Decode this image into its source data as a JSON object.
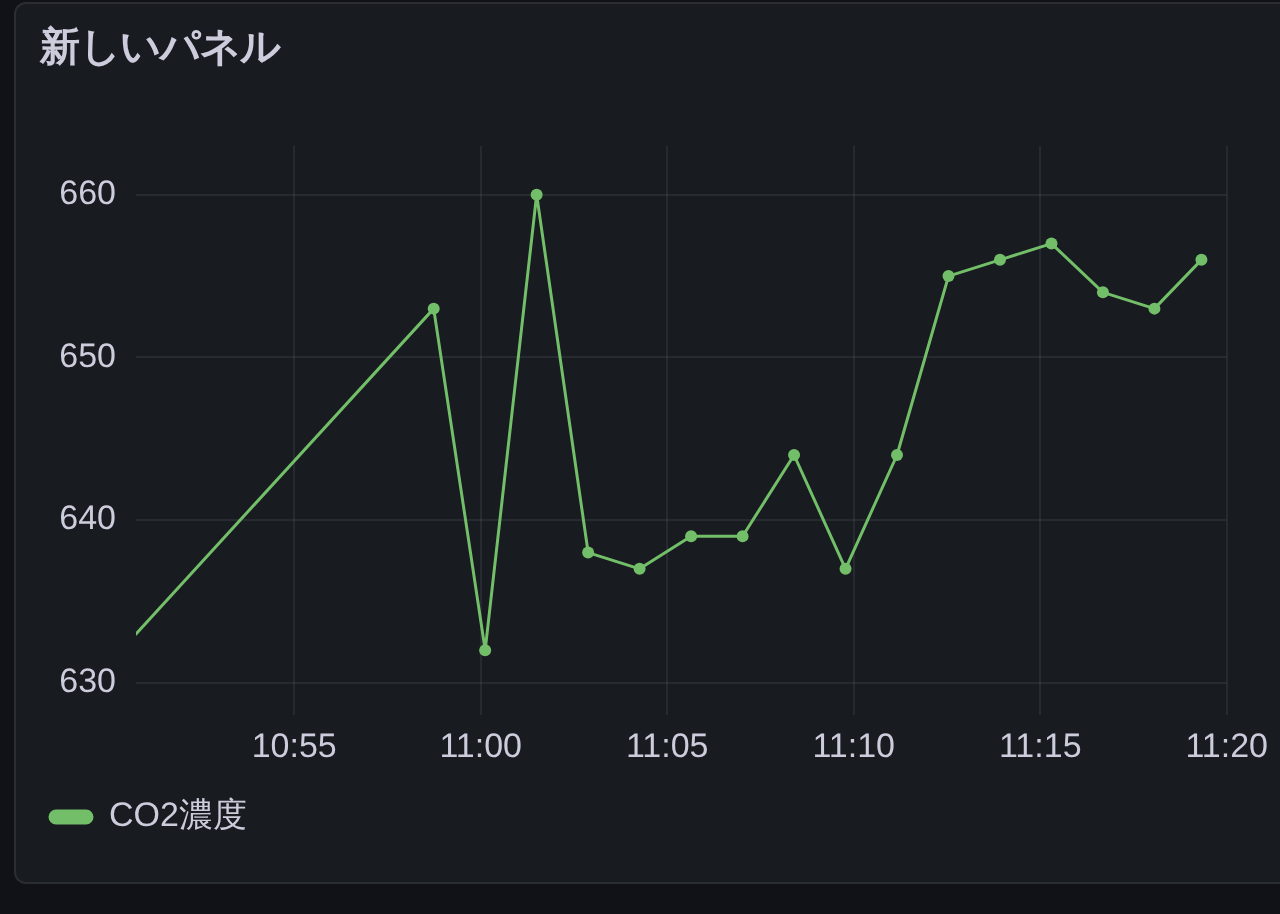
{
  "chart_data": {
    "type": "line",
    "title": "新しいパネル",
    "x": [
      10.846,
      10.979,
      11.002,
      11.025,
      11.048,
      11.071,
      11.094,
      11.117,
      11.14,
      11.163,
      11.186,
      11.209,
      11.232,
      11.255,
      11.278,
      11.301,
      11.322
    ],
    "series": [
      {
        "name": "CO2濃度",
        "color": "#73bf69",
        "values": [
          633,
          653,
          632,
          660,
          638,
          637,
          639,
          639,
          644,
          637,
          644,
          655,
          656,
          657,
          654,
          653,
          656
        ]
      }
    ],
    "xlim": [
      10.846,
      11.3333
    ],
    "xticks": [
      {
        "value": 10.91667,
        "label": "10:55"
      },
      {
        "value": 11,
        "label": "11:00"
      },
      {
        "value": 11.08333,
        "label": "11:05"
      },
      {
        "value": 11.16667,
        "label": "11:10"
      },
      {
        "value": 11.25,
        "label": "11:15"
      },
      {
        "value": 11.3333,
        "label": "11:20"
      }
    ],
    "ylim": [
      628,
      663
    ],
    "yticks": [
      630,
      640,
      650,
      660
    ],
    "grid": true,
    "legend": "bottom left",
    "marker": "circle",
    "line_style": "solid"
  }
}
